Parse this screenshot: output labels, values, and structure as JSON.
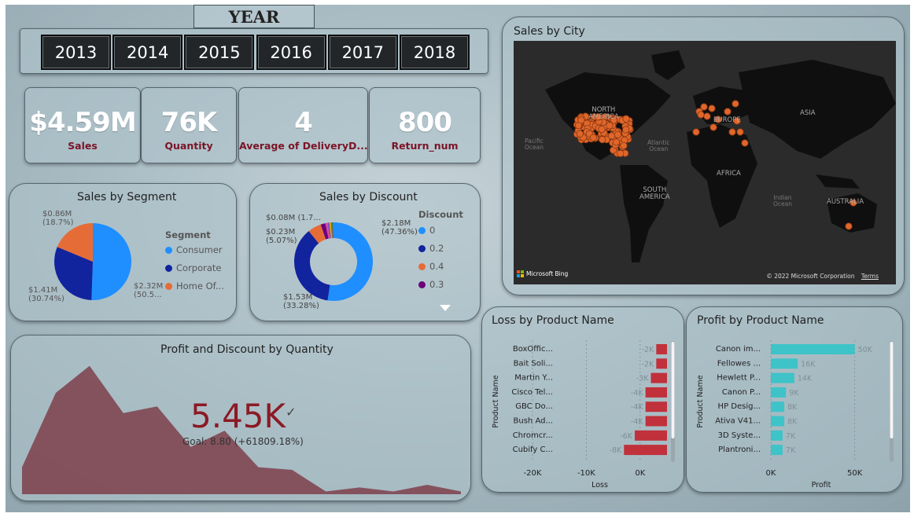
{
  "year_slicer": {
    "title": "YEAR",
    "years": [
      "2013",
      "2014",
      "2015",
      "2016",
      "2017",
      "2018"
    ]
  },
  "kpis": [
    {
      "value": "$4.59M",
      "label": "Sales"
    },
    {
      "value": "76K",
      "label": "Quantity"
    },
    {
      "value": "4",
      "label": "Average of DeliveryD..."
    },
    {
      "value": "800",
      "label": "Return_num"
    }
  ],
  "sales_by_segment": {
    "title": "Sales by Segment",
    "legend_title": "Segment",
    "slices": [
      {
        "name": "Consumer",
        "value": 2.32,
        "label": "$2.32M",
        "pct": "(50.5...",
        "color": "#1f8fff"
      },
      {
        "name": "Corporate",
        "value": 1.41,
        "label": "$1.41M",
        "pct": "(30.74%)",
        "color": "#12239e"
      },
      {
        "name": "Home Of...",
        "value": 0.86,
        "label": "$0.86M",
        "pct": "(18.7%)",
        "color": "#e66c37"
      }
    ]
  },
  "sales_by_discount": {
    "title": "Sales by Discount",
    "legend_title": "Discount",
    "legend": [
      {
        "name": "0",
        "color": "#1f8fff"
      },
      {
        "name": "0.2",
        "color": "#12239e"
      },
      {
        "name": "0.4",
        "color": "#e66c37"
      },
      {
        "name": "0.3",
        "color": "#6b007b"
      }
    ],
    "labels": {
      "a_value": "$2.18M",
      "a_pct": "(47.36%)",
      "b_value": "$1.53M",
      "b_pct": "(33.28%)",
      "c_value": "$0.23M",
      "c_pct": "(5.07%)",
      "d_value": "$0.08M",
      "d_pct": "(1.7..."
    }
  },
  "sales_by_city": {
    "title": "Sales by City",
    "map_labels": {
      "north_america": "NORTH\nAMERICA",
      "europe": "EUROPE",
      "asia": "ASIA",
      "africa": "AFRICA",
      "south_america": "SOUTH\nAMERICA",
      "australia": "AUSTRALIA",
      "pacific": "Pacific\nOcean",
      "atlantic": "Atlantic\nOcean",
      "indian": "Indian\nOcean"
    },
    "bing_logo": "Microsoft Bing",
    "copyright": "© 2022 Microsoft Corporation",
    "terms": "Terms"
  },
  "profit_discount": {
    "title": "Profit and Discount by Quantity",
    "kpi_value": "5.45K",
    "goal_text": "Goal: 8.80 (+61809.18%)"
  },
  "chart_data": [
    {
      "type": "pie",
      "title": "Sales by Segment",
      "categories": [
        "Consumer",
        "Corporate",
        "Home Of..."
      ],
      "values": [
        2.32,
        1.41,
        0.86
      ]
    },
    {
      "type": "pie",
      "title": "Sales by Discount",
      "categories": [
        "0",
        "0.2",
        "0.4",
        "0.3"
      ],
      "values": [
        2.18,
        1.53,
        0.23,
        0.08
      ]
    },
    {
      "type": "area",
      "title": "Profit and Discount by Quantity",
      "x": [
        1,
        2,
        3,
        4,
        5,
        6,
        7,
        8,
        9,
        10,
        11,
        12,
        13,
        14
      ],
      "values": [
        0.2,
        0.75,
        0.95,
        0.6,
        0.65,
        0.35,
        0.47,
        0.2,
        0.18,
        0.02,
        0.05,
        0.02,
        0.07,
        0.02
      ]
    },
    {
      "type": "bar",
      "title": "Loss by Product Name",
      "ylabel": "Product Name",
      "xlabel": "Loss",
      "categories": [
        "BoxOffic...",
        "Bait Soli...",
        "Martin Y...",
        "Cisco Tel...",
        "GBC Do...",
        "Bush Ad...",
        "Chromcr...",
        "Cubify C..."
      ],
      "values": [
        -2,
        -2,
        -3,
        -4,
        -4,
        -4,
        -6,
        -8
      ],
      "value_labels": [
        "-2K",
        "-2K",
        "-3K",
        "-4K",
        "-4K",
        "-4K",
        "-6K",
        "-8K"
      ],
      "xticks": [
        "-20K",
        "-10K",
        "0K"
      ],
      "xlim": [
        -25,
        0
      ],
      "color": "#c0313b"
    },
    {
      "type": "bar",
      "title": "Profit by Product Name",
      "ylabel": "Product Name",
      "xlabel": "Profit",
      "categories": [
        "Canon im...",
        "Fellowes ...",
        "Hewlett P...",
        "Canon P...",
        "HP Desig...",
        "Ativa V41...",
        "3D Syste...",
        "Plantroni..."
      ],
      "values": [
        50,
        16,
        14,
        9,
        8,
        8,
        7,
        7
      ],
      "value_labels": [
        "50K",
        "16K",
        "14K",
        "9K",
        "8K",
        "8K",
        "7K",
        "7K"
      ],
      "xticks": [
        "0K",
        "50K"
      ],
      "xlim": [
        0,
        60
      ],
      "color": "#3ec3c8"
    }
  ]
}
